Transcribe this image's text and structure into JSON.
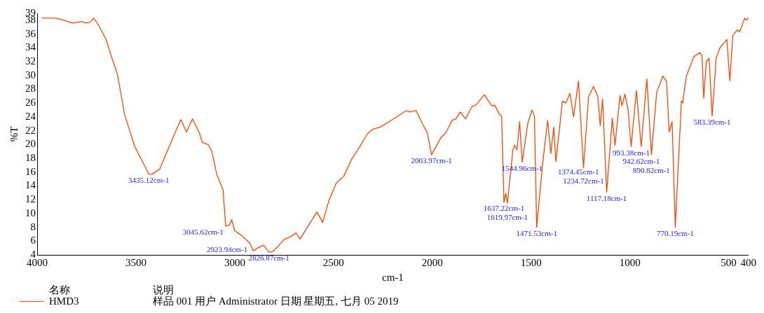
{
  "chart_data": {
    "type": "line",
    "xlabel": "cm-1",
    "ylabel": "%T",
    "legend_title": "名称",
    "legend": "bottom left",
    "grid": false,
    "marker": "none",
    "xlim": [
      4000,
      400
    ],
    "xticks": [
      4000,
      3500,
      3000,
      2500,
      2000,
      1500,
      1000,
      500,
      400
    ],
    "ylim": [
      4,
      39
    ],
    "yticks": [
      4,
      6,
      8,
      10,
      12,
      14,
      16,
      18,
      20,
      22,
      24,
      26,
      28,
      30,
      32,
      34,
      36,
      38,
      39
    ],
    "series": [
      {
        "name": "HMD3",
        "color": "#ff4500",
        "x": [
          3975,
          3903,
          3878,
          3821,
          3771,
          3758,
          3733,
          3714,
          3689,
          3651,
          3626,
          3594,
          3557,
          3506,
          3443,
          3435.12,
          3418,
          3380,
          3317,
          3273,
          3244,
          3214,
          3179,
          3164,
          3135,
          3116,
          3091,
          3059,
          3045.62,
          3028,
          3015,
          3000,
          2965,
          2923.94,
          2906,
          2877,
          2854,
          2826.87,
          2807,
          2782,
          2751,
          2713,
          2690,
          2669,
          2637,
          2584,
          2555,
          2524,
          2486,
          2448,
          2411,
          2373,
          2329,
          2301,
          2264,
          2201,
          2132,
          2113,
          2082,
          2050,
          2025,
          2003.97,
          1956,
          1931,
          1900,
          1881,
          1859,
          1831,
          1799,
          1780,
          1736,
          1699,
          1684,
          1661,
          1649,
          1637.22,
          1628,
          1619.97,
          1592,
          1583,
          1571,
          1558,
          1544.96,
          1517,
          1495,
          1483,
          1471.53,
          1442,
          1416,
          1400,
          1385,
          1374.45,
          1341,
          1325,
          1303,
          1285,
          1260,
          1234.72,
          1209,
          1184,
          1162,
          1150,
          1138,
          1117.18,
          1089,
          1075,
          1050,
          1040,
          1025,
          1009,
          993.38,
          967,
          942.62,
          914,
          890.82,
          864,
          833,
          814,
          801,
          786,
          770.19,
          739,
          733,
          714,
          676,
          647,
          635,
          626,
          613,
          599,
          583.39,
          563,
          544,
          509,
          494,
          479,
          456,
          444,
          419,
          410,
          400
        ],
        "values": [
          38.3,
          38.3,
          38.1,
          37.6,
          37.8,
          37.6,
          37.7,
          38.3,
          37.3,
          35.2,
          32.9,
          30.2,
          24.3,
          19.7,
          16.2,
          15.7,
          15.7,
          16.4,
          20.7,
          23.6,
          21.8,
          23.7,
          21.7,
          20.3,
          20.0,
          19.0,
          15.7,
          13.4,
          8.2,
          8.3,
          9.1,
          7.5,
          6.8,
          5.7,
          4.6,
          5.1,
          5.4,
          4.4,
          4.5,
          5.2,
          6.2,
          6.7,
          7.2,
          6.3,
          7.8,
          10.2,
          8.7,
          11.8,
          14.4,
          15.4,
          17.7,
          19.4,
          21.5,
          22.2,
          22.5,
          23.6,
          24.9,
          24.7,
          24.9,
          23.0,
          21.7,
          18.5,
          21.0,
          21.7,
          23.5,
          23.7,
          24.7,
          23.7,
          25.5,
          25.7,
          27.2,
          25.6,
          25.7,
          24.4,
          24.1,
          11.6,
          12.9,
          11.5,
          19.2,
          19.9,
          19.2,
          23.3,
          17.4,
          23.0,
          25.0,
          24.1,
          8.0,
          17.1,
          23.5,
          18.7,
          22.5,
          17.5,
          26.3,
          26.0,
          27.4,
          24.0,
          29.2,
          16.6,
          26.9,
          28.4,
          26.9,
          22.7,
          26.6,
          13.1,
          23.8,
          19.9,
          27.1,
          25.6,
          27.3,
          25.0,
          19.7,
          27.8,
          19.7,
          29.5,
          18.5,
          27.6,
          29.9,
          29.1,
          21.8,
          23.3,
          8.0,
          26.3,
          26.0,
          29.9,
          32.7,
          33.3,
          32.9,
          26.7,
          32.0,
          32.5,
          24.1,
          32.5,
          34.0,
          35.2,
          29.2,
          35.8,
          36.6,
          36.3,
          38.3,
          38.0,
          38.4
        ]
      }
    ],
    "annotations": [
      {
        "text": "3435.12cm-1",
        "x": 3435.12,
        "y": 15.7
      },
      {
        "text": "3045.62cm-1",
        "x": 3045.62,
        "y": 8.2
      },
      {
        "text": "2923.94cm-1",
        "x": 2923.94,
        "y": 5.7
      },
      {
        "text": "2826.87cm-1",
        "x": 2826.87,
        "y": 4.4
      },
      {
        "text": "2003.97cm-1",
        "x": 2003.97,
        "y": 18.5
      },
      {
        "text": "1637.22cm-1",
        "x": 1637.22,
        "y": 11.6
      },
      {
        "text": "1619.97cm-1",
        "x": 1619.97,
        "y": 11.5
      },
      {
        "text": "1544.96cm-1",
        "x": 1544.96,
        "y": 17.4
      },
      {
        "text": "1471.53cm-1",
        "x": 1471.53,
        "y": 8.0
      },
      {
        "text": "1374.45cm-1",
        "x": 1374.45,
        "y": 17.5
      },
      {
        "text": "1234.72cm-1",
        "x": 1234.72,
        "y": 16.6
      },
      {
        "text": "1117.18cm-1",
        "x": 1117.18,
        "y": 13.1
      },
      {
        "text": "993.38cm-1",
        "x": 993.38,
        "y": 19.7
      },
      {
        "text": "942.62cm-1",
        "x": 942.62,
        "y": 19.7
      },
      {
        "text": "890.82cm-1",
        "x": 890.82,
        "y": 18.5
      },
      {
        "text": "770.19cm-1",
        "x": 770.19,
        "y": 8.0
      },
      {
        "text": "583.39cm-1",
        "x": 583.39,
        "y": 24.1
      },
      "说明",
      "样品 001 用户 Administrator 日期 星期五, 七月 05 2019"
    ]
  }
}
